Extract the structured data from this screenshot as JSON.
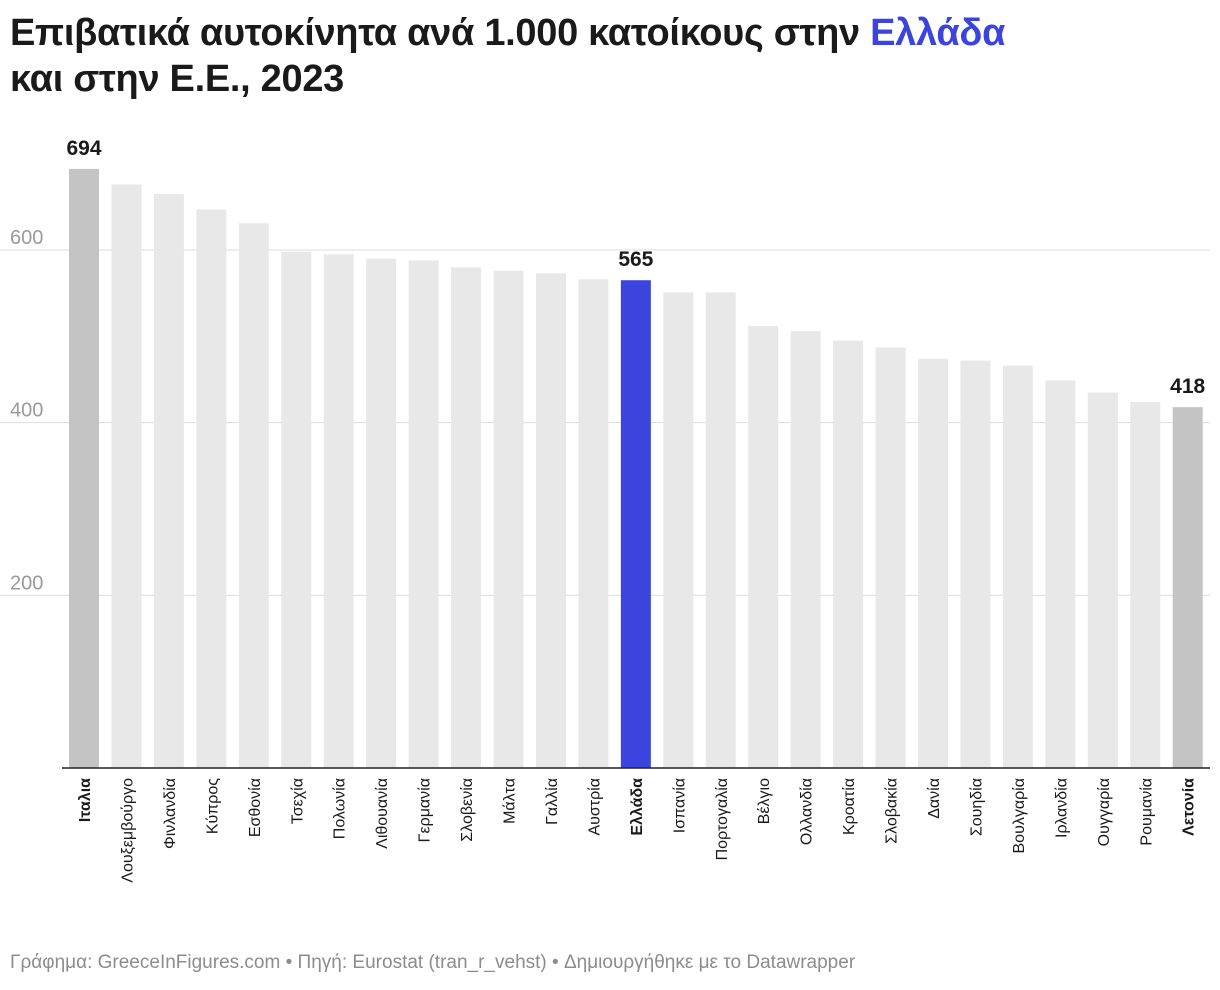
{
  "title": {
    "part1": "Επιβατικά αυτοκίνητα ανά 1.000 κατοίκους στην ",
    "highlight": "Ελλάδα",
    "part2": "και στην Ε.Ε., 2023"
  },
  "footer": "Γράφημα: GreeceInFigures.com • Πηγή: Eurostat (tran_r_vehst) • Δημιουργήθηκε με το Datawrapper",
  "colors": {
    "default_bar": "#e8e8e8",
    "extreme_bar": "#c4c4c4",
    "highlight_bar": "#3b44df",
    "grid": "#dddddd",
    "tick_label": "#9a9a9a",
    "text": "#1a1a1a"
  },
  "chart_data": {
    "type": "bar",
    "title": "Επιβατικά αυτοκίνητα ανά 1.000 κατοίκους στην Ελλάδα και στην Ε.Ε., 2023",
    "xlabel": "",
    "ylabel": "",
    "ylim": [
      0,
      750
    ],
    "yticks": [
      200,
      400,
      600
    ],
    "grid": true,
    "categories": [
      "Ιταλια",
      "Λουξεμβούργο",
      "Φινλανδία",
      "Κύπρος",
      "Εσθονία",
      "Τσεχία",
      "Πολωνία",
      "Λιθουανία",
      "Γερμανία",
      "Σλοβενία",
      "Μάλτα",
      "Γαλλία",
      "Αυστρία",
      "Ελλάδα",
      "Ισπανία",
      "Πορτογαλία",
      "Βέλγιο",
      "Ολλανδία",
      "Κροατία",
      "Σλοβακία",
      "Δανία",
      "Σουηδία",
      "Βουλγαρία",
      "Ιρλανδία",
      "Ουγγαρία",
      "Ρουμανία",
      "Λετονία"
    ],
    "values": [
      694,
      676,
      665,
      647,
      631,
      598,
      595,
      590,
      588,
      580,
      576,
      573,
      566,
      565,
      551,
      551,
      512,
      506,
      495,
      487,
      474,
      472,
      466,
      449,
      435,
      424,
      418
    ],
    "data_labels": [
      {
        "category": "Ιταλια",
        "text": "694"
      },
      {
        "category": "Ελλάδα",
        "text": "565"
      },
      {
        "category": "Λετονία",
        "text": "418"
      }
    ],
    "highlight": "Ελλάδα",
    "extremes": [
      "Ιταλια",
      "Λετονία"
    ],
    "bold_labels": [
      "Ιταλια",
      "Ελλάδα",
      "Λετονία"
    ]
  }
}
